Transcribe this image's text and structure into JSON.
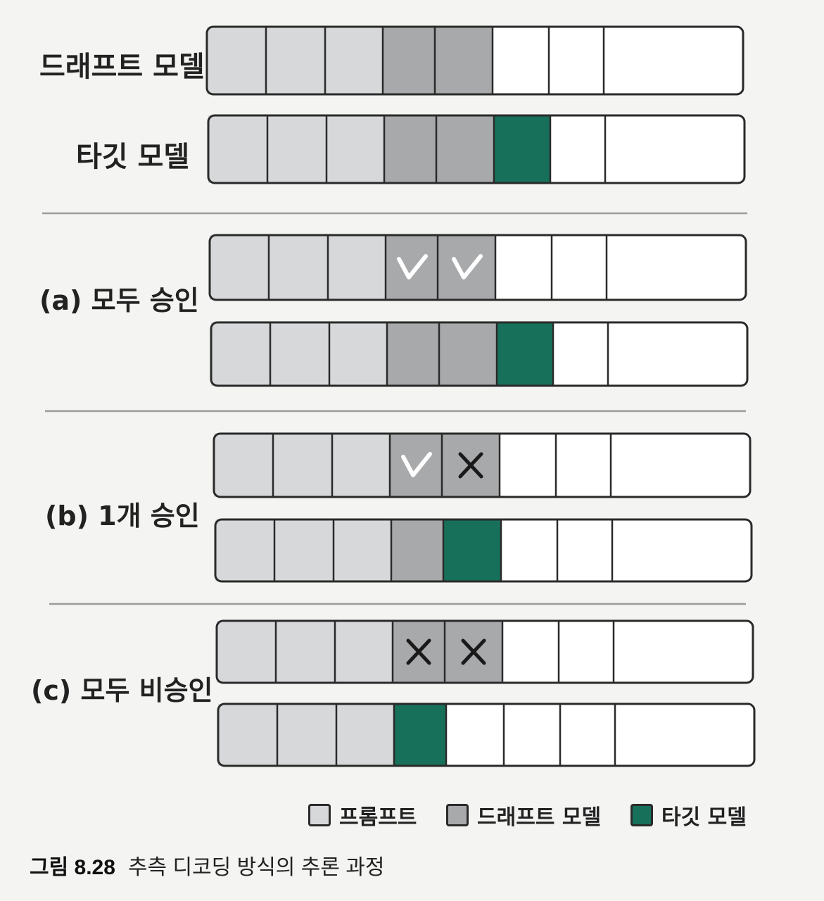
{
  "labels": {
    "draft_model": "드래프트 모델",
    "target_model": "타깃 모델",
    "case_a": "(a) 모두 승인",
    "case_b": "(b) 1개 승인",
    "case_c": "(c) 모두 비승인"
  },
  "colors": {
    "prompt": "#d6d8da",
    "draft": "#a8a9ab",
    "target": "#17705a",
    "empty": "#ffffff",
    "outline": "#2a2a2a",
    "divider": "#9a9c9e"
  },
  "bars": [
    {
      "id": "draft-model-bar",
      "cells": [
        "prompt",
        "prompt",
        "prompt",
        "draft",
        "draft",
        "empty",
        "empty",
        "empty"
      ],
      "marks": []
    },
    {
      "id": "target-model-bar",
      "cells": [
        "prompt",
        "prompt",
        "prompt",
        "draft",
        "draft",
        "target",
        "empty",
        "empty"
      ],
      "marks": []
    },
    {
      "id": "case-a-draft-bar",
      "cells": [
        "prompt",
        "prompt",
        "prompt",
        "draft",
        "draft",
        "empty",
        "empty",
        "empty"
      ],
      "marks": [
        "",
        "",
        "",
        "check",
        "check",
        "",
        "",
        ""
      ]
    },
    {
      "id": "case-a-target-bar",
      "cells": [
        "prompt",
        "prompt",
        "prompt",
        "draft",
        "draft",
        "target",
        "empty",
        "empty"
      ],
      "marks": []
    },
    {
      "id": "case-b-draft-bar",
      "cells": [
        "prompt",
        "prompt",
        "prompt",
        "draft",
        "draft",
        "empty",
        "empty",
        "empty"
      ],
      "marks": [
        "",
        "",
        "",
        "check",
        "x",
        "",
        "",
        ""
      ]
    },
    {
      "id": "case-b-target-bar",
      "cells": [
        "prompt",
        "prompt",
        "prompt",
        "draft",
        "target",
        "empty",
        "empty",
        "empty"
      ],
      "marks": []
    },
    {
      "id": "case-c-draft-bar",
      "cells": [
        "prompt",
        "prompt",
        "prompt",
        "draft",
        "draft",
        "empty",
        "empty",
        "empty"
      ],
      "marks": [
        "",
        "",
        "",
        "x",
        "x",
        "",
        "",
        ""
      ]
    },
    {
      "id": "case-c-target-bar",
      "cells": [
        "prompt",
        "prompt",
        "prompt",
        "target",
        "empty",
        "empty",
        "empty",
        "empty"
      ],
      "marks": []
    }
  ],
  "legend": [
    {
      "key": "prompt",
      "label": "프롬프트"
    },
    {
      "key": "draft",
      "label": "드래프트 모델"
    },
    {
      "key": "target",
      "label": "타깃 모델"
    }
  ],
  "caption": {
    "number": "그림 8.28",
    "text": "추측 디코딩 방식의 추론 과정"
  }
}
